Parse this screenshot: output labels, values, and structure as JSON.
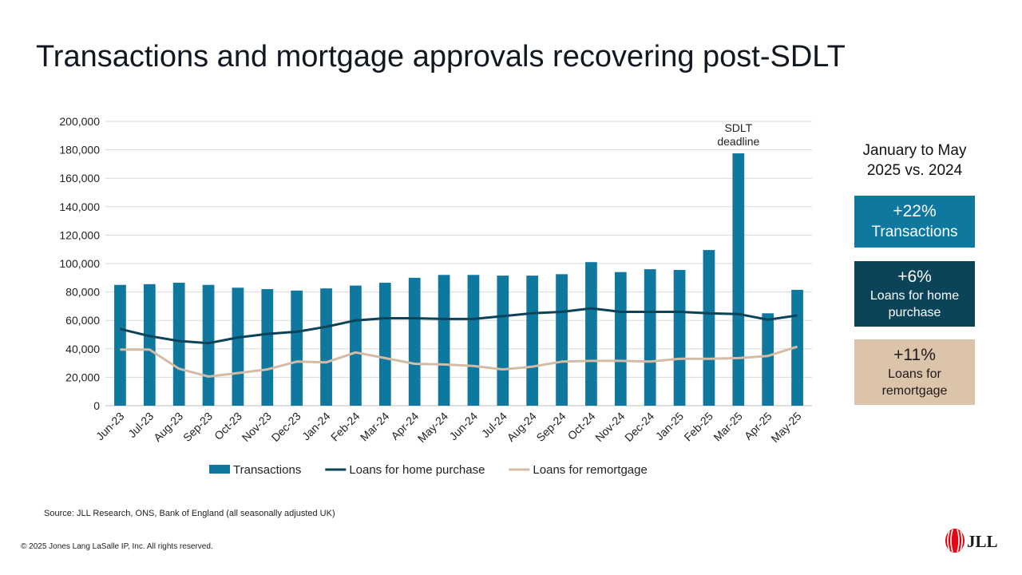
{
  "title": "Transactions and mortgage approvals recovering post-SDLT",
  "chart_data": {
    "type": "bar",
    "categories": [
      "Jun-23",
      "Jul-23",
      "Aug-23",
      "Sep-23",
      "Oct-23",
      "Nov-23",
      "Dec-23",
      "Jan-24",
      "Feb-24",
      "Mar-24",
      "Apr-24",
      "May-24",
      "Jun-24",
      "Jul-24",
      "Aug-24",
      "Sep-24",
      "Oct-24",
      "Nov-24",
      "Dec-24",
      "Jan-25",
      "Feb-25",
      "Mar-25",
      "Apr-25",
      "May-25"
    ],
    "series": [
      {
        "name": "Transactions",
        "kind": "bar",
        "color": "#0f789f",
        "values": [
          85000,
          85500,
          86500,
          85000,
          83000,
          82000,
          81000,
          82500,
          84500,
          86500,
          90000,
          92000,
          92000,
          91500,
          91500,
          92500,
          101000,
          94000,
          96000,
          95500,
          109500,
          177500,
          65000,
          81500
        ]
      },
      {
        "name": "Loans for home purchase",
        "kind": "line",
        "color": "#0b4359",
        "values": [
          54000,
          49000,
          45500,
          44000,
          48000,
          50500,
          52000,
          55500,
          60000,
          61500,
          61500,
          61000,
          61000,
          63000,
          65000,
          66000,
          68500,
          66000,
          66000,
          66000,
          65000,
          64500,
          60500,
          63500
        ]
      },
      {
        "name": "Loans for remortgage",
        "kind": "line",
        "color": "#d3bba6",
        "values": [
          39500,
          39500,
          26000,
          20500,
          23000,
          25500,
          31000,
          30500,
          37500,
          33500,
          29500,
          29000,
          28000,
          25500,
          27500,
          31000,
          31500,
          31500,
          31000,
          33000,
          33000,
          33500,
          35000,
          41500
        ]
      }
    ],
    "ylim": [
      0,
      200000
    ],
    "yticks": [
      "0",
      "20,000",
      "40,000",
      "60,000",
      "80,000",
      "100,000",
      "120,000",
      "140,000",
      "160,000",
      "180,000",
      "200,000"
    ],
    "grid": true,
    "legend_position": "bottom",
    "annotation": {
      "lines": [
        "SDLT",
        "deadline"
      ],
      "category": "Mar-25"
    }
  },
  "panel": {
    "heading_line1": "January to May",
    "heading_line2": "2025 vs. 2024",
    "stats": [
      {
        "pct": "+22%",
        "label_line1": "Transactions",
        "label_line2": "",
        "color": "#0f789f"
      },
      {
        "pct": "+6%",
        "label_line1": "Loans for home",
        "label_line2": "purchase",
        "color": "#0b4359"
      },
      {
        "pct": "+11%",
        "label_line1": "Loans for",
        "label_line2": "remortgage",
        "color": "#dcc4ab"
      }
    ]
  },
  "source": "Source: JLL Research, ONS, Bank of England (all seasonally adjusted UK)",
  "copyright": "© 2025 Jones Lang LaSalle IP, Inc. All rights reserved.",
  "logo_text": "JLL"
}
